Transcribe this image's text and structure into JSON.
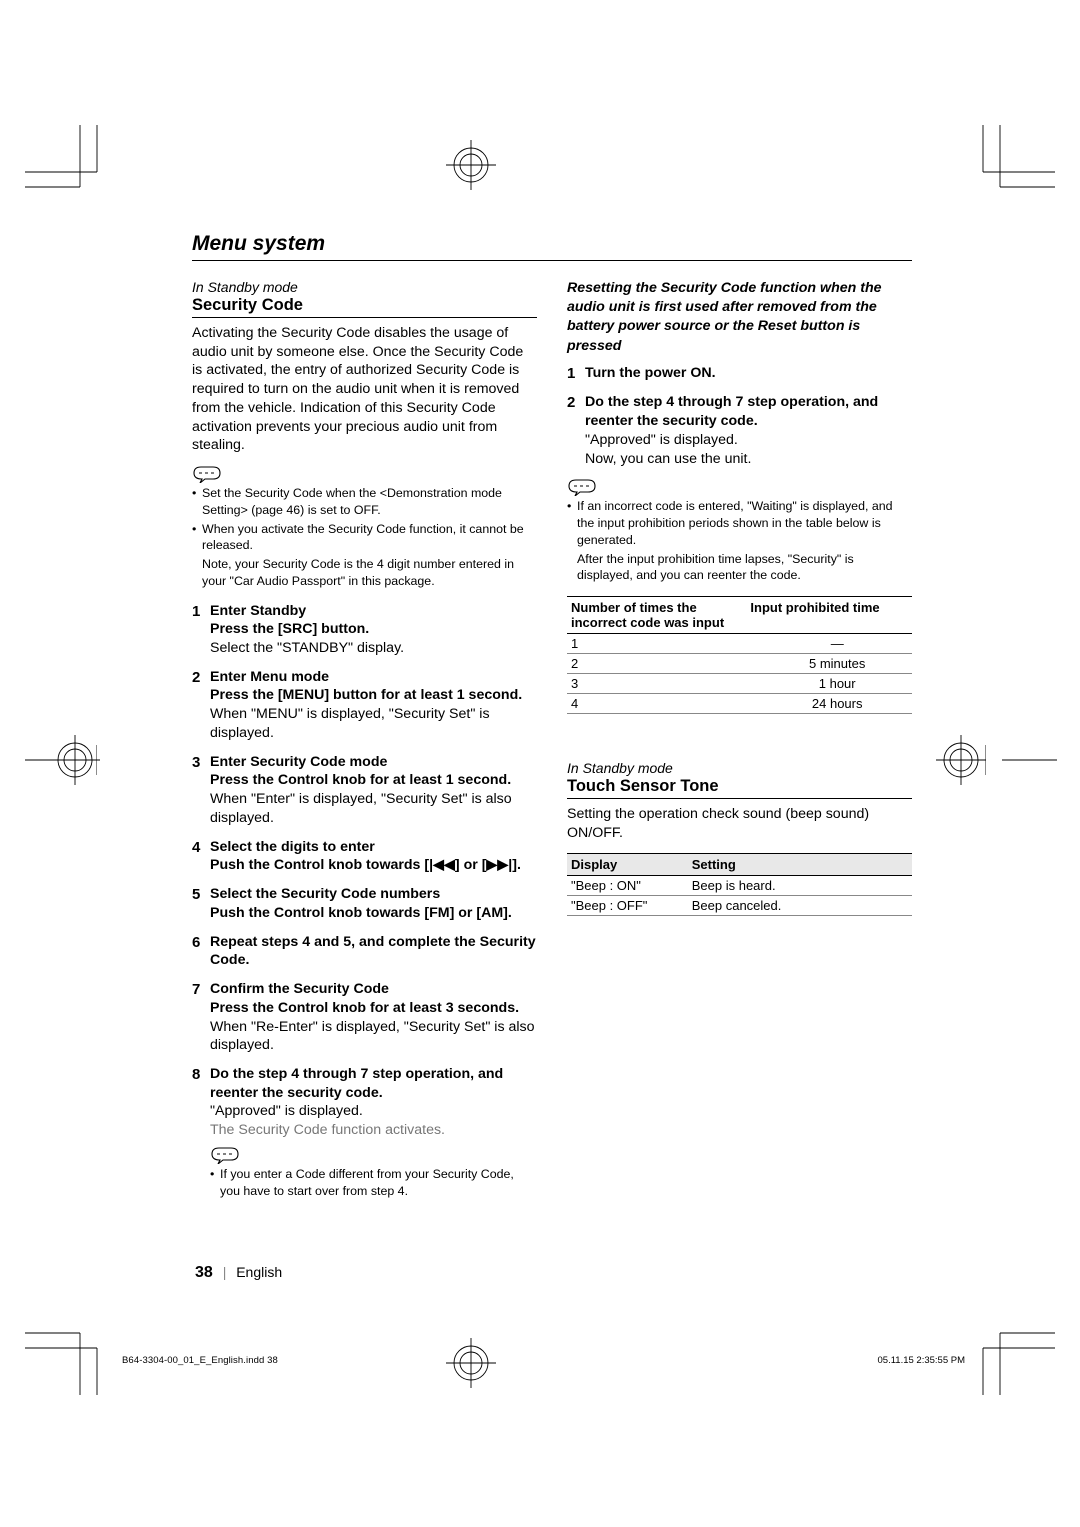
{
  "page": {
    "title": "Menu system",
    "number": "38",
    "language": "English"
  },
  "security": {
    "mode": "In Standby mode",
    "heading": "Security Code",
    "intro": "Activating the Security Code disables the usage of audio unit by someone else. Once the Security Code is activated, the entry of authorized Security Code is required to turn on the audio unit when it is removed from the vehicle. Indication of this Security Code activation prevents  your precious audio unit from stealing.",
    "notes": [
      "Set the Security Code when the <Demonstration mode Setting> (page 46) is set to OFF.",
      "When you activate the Security Code function, it cannot be released."
    ],
    "notes_cont": "Note, your Security Code is the 4 digit number entered in your \"Car Audio Passport\" in this package.",
    "steps": [
      {
        "n": "1",
        "b1": "Enter Standby",
        "b2": "Press the [SRC] button.",
        "p": "Select the \"STANDBY\" display."
      },
      {
        "n": "2",
        "b1": "Enter Menu mode",
        "b2": "Press the [MENU] button for at least 1 second.",
        "p": "When \"MENU\" is displayed, \"Security Set\" is displayed."
      },
      {
        "n": "3",
        "b1": "Enter Security Code mode",
        "b2": "Press the Control knob for at least 1 second.",
        "p": "When \"Enter\" is displayed, \"Security Set\" is also displayed."
      },
      {
        "n": "4",
        "b1": "Select the digits to enter",
        "b2": "Push the Control knob towards [|◀◀] or [▶▶|]."
      },
      {
        "n": "5",
        "b1": "Select the Security Code numbers",
        "b2": "Push the Control knob towards [FM] or [AM]."
      },
      {
        "n": "6",
        "b1": "Repeat steps 4 and 5, and complete the Security Code."
      },
      {
        "n": "7",
        "b1": "Confirm the Security Code",
        "b2": "Press the Control knob for at least 3 seconds.",
        "p": "When \"Re-Enter\" is displayed, \"Security Set\" is also displayed."
      },
      {
        "n": "8",
        "b1": "Do the step 4 through 7 step operation, and reenter the security code.",
        "p": "\"Approved\" is displayed.",
        "g": "The Security Code function activates."
      }
    ],
    "step_note": "If you enter a Code different from your Security Code, you have to start over from step 4."
  },
  "reset": {
    "heading": "Resetting the Security Code function when the audio unit is first used after removed from the battery power source or the Reset button is pressed",
    "steps": [
      {
        "n": "1",
        "b1": "Turn the power ON."
      },
      {
        "n": "2",
        "b1": "Do the step 4 through 7 step operation, and reenter the security code.",
        "p": "\"Approved\" is displayed.",
        "p2": "Now, you can use the unit."
      }
    ],
    "note_lines": [
      "If an incorrect code is entered, \"Waiting\" is displayed, and the input prohibition periods shown in the table below is generated.",
      "After the input prohibition time lapses, \"Security\" is displayed, and you can reenter the code."
    ],
    "table": {
      "head1": "Number of times the incorrect code was input",
      "head2": "Input prohibited time",
      "rows": [
        [
          "1",
          "—"
        ],
        [
          "2",
          "5 minutes"
        ],
        [
          "3",
          "1 hour"
        ],
        [
          "4",
          "24 hours"
        ]
      ]
    }
  },
  "touch": {
    "mode": "In Standby mode",
    "heading": "Touch Sensor Tone",
    "intro": "Setting the operation check sound (beep sound) ON/OFF.",
    "table": {
      "head1": "Display",
      "head2": "Setting",
      "rows": [
        [
          "\"Beep : ON\"",
          "Beep is heard."
        ],
        [
          "\"Beep : OFF\"",
          "Beep canceled."
        ]
      ]
    }
  },
  "footer": {
    "indd": "B64-3304-00_01_E_English.indd   38",
    "timestamp": "05.11.15   2:35:55 PM"
  }
}
